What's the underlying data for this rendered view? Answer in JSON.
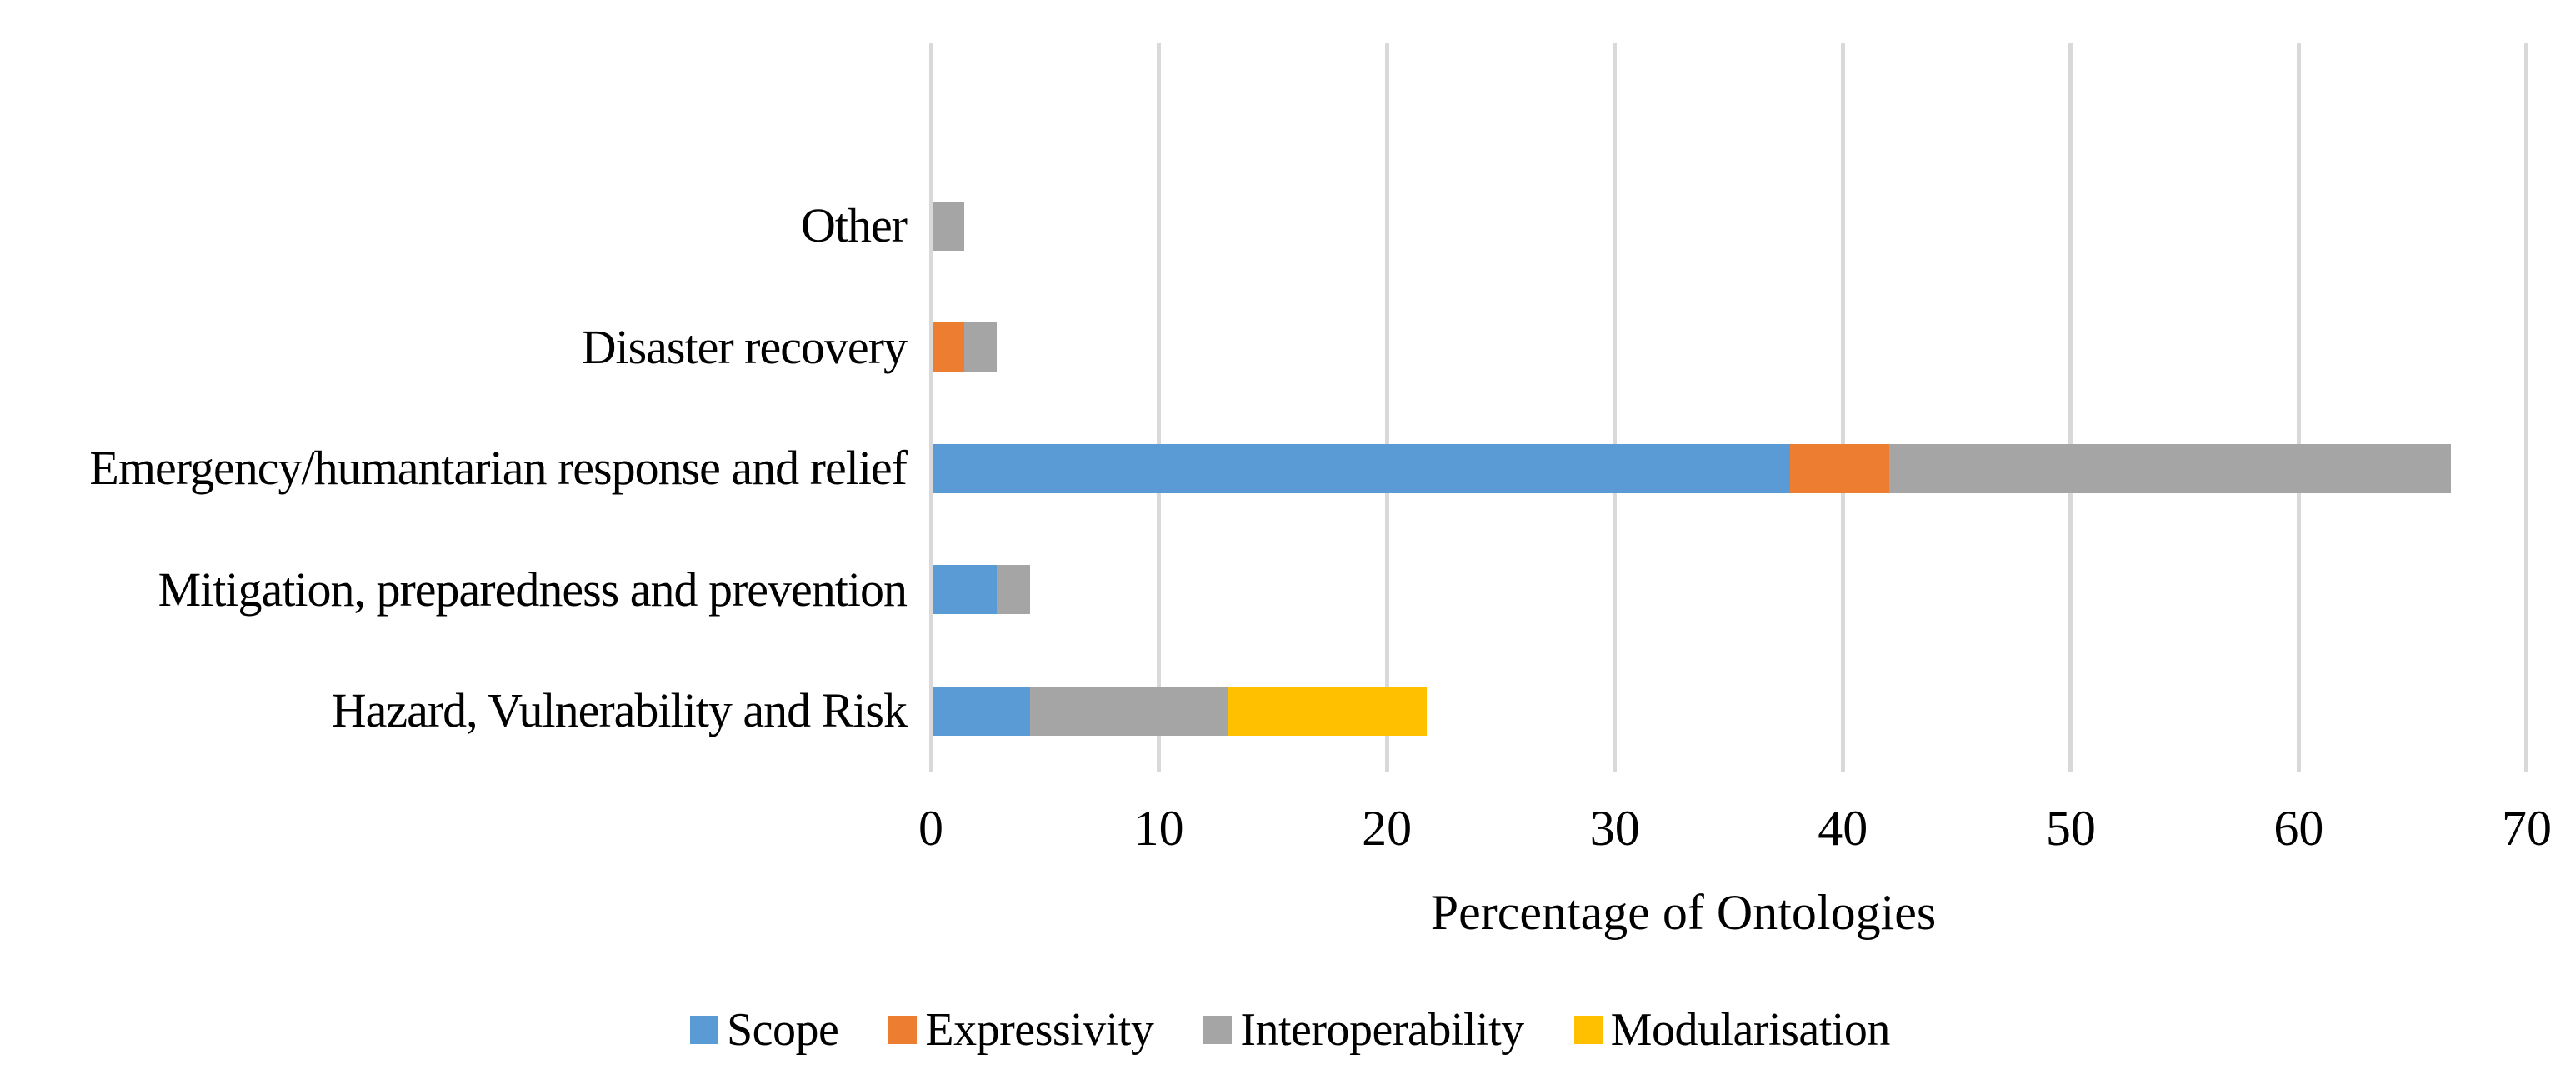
{
  "chart_data": {
    "type": "bar",
    "orientation": "horizontal",
    "stacked": true,
    "title": "",
    "xlabel": "Percentage of Ontologies",
    "ylabel": "",
    "xlim": [
      0,
      70
    ],
    "x_ticks": [
      0,
      10,
      20,
      30,
      40,
      50,
      60,
      70
    ],
    "grid": true,
    "legend_position": "bottom",
    "background": "#FFFFFF",
    "gridline_color": "#D9D9D9",
    "text_color": "#000000",
    "categories_top_to_bottom": [
      "Other",
      "Disaster recovery",
      "Emergency/humantarian response and relief",
      "Mitigation, preparedness and prevention",
      "Hazard, Vulnerability and Risk"
    ],
    "series": [
      {
        "name": "Scope",
        "color": "#5B9BD5",
        "values": [
          0,
          0,
          37.68,
          2.9,
          4.35
        ]
      },
      {
        "name": "Expressivity",
        "color": "#ED7D31",
        "values": [
          0,
          1.45,
          4.35,
          0,
          0
        ]
      },
      {
        "name": "Interoperability",
        "color": "#A5A5A5",
        "values": [
          1.45,
          1.45,
          24.64,
          1.45,
          8.7
        ]
      },
      {
        "name": "Modularisation",
        "color": "#FFC000",
        "values": [
          0,
          0,
          0,
          0,
          8.7
        ]
      }
    ],
    "category_totals": [
      1.45,
      2.9,
      66.67,
      4.35,
      21.74
    ]
  }
}
